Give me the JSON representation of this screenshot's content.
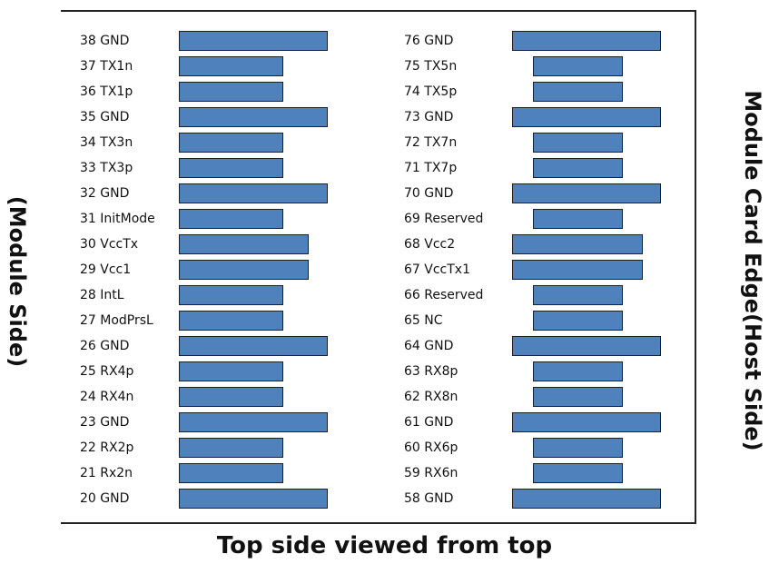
{
  "left_side_label": "(Module Side)",
  "right_side_label": "Module Card Edge(Host Side)",
  "caption": "Top side viewed from top",
  "colors": {
    "pad_fill": "#4f81bd",
    "pad_border": "#1f1f1f",
    "frame": "#222222"
  },
  "left_column": [
    {
      "label": "38 GND",
      "type": "ground"
    },
    {
      "label": "37 TX1n",
      "type": "signal"
    },
    {
      "label": "36 TX1p",
      "type": "signal"
    },
    {
      "label": "35 GND",
      "type": "ground"
    },
    {
      "label": "34 TX3n",
      "type": "signal"
    },
    {
      "label": "33 TX3p",
      "type": "signal"
    },
    {
      "label": "32 GND",
      "type": "ground"
    },
    {
      "label": "31 InitMode",
      "type": "signal"
    },
    {
      "label": "30 VccTx",
      "type": "power"
    },
    {
      "label": "29 Vcc1",
      "type": "power"
    },
    {
      "label": "28 IntL",
      "type": "signal"
    },
    {
      "label": "27 ModPrsL",
      "type": "signal"
    },
    {
      "label": "26 GND",
      "type": "ground"
    },
    {
      "label": "25 RX4p",
      "type": "signal"
    },
    {
      "label": "24 RX4n",
      "type": "signal"
    },
    {
      "label": "23 GND",
      "type": "ground"
    },
    {
      "label": "22 RX2p",
      "type": "signal"
    },
    {
      "label": "21 Rx2n",
      "type": "signal"
    },
    {
      "label": "20 GND",
      "type": "ground"
    }
  ],
  "right_column": [
    {
      "label": "76 GND",
      "type": "ground"
    },
    {
      "label": "75 TX5n",
      "type": "signal"
    },
    {
      "label": "74 TX5p",
      "type": "signal"
    },
    {
      "label": "73 GND",
      "type": "ground"
    },
    {
      "label": "72 TX7n",
      "type": "signal"
    },
    {
      "label": "71 TX7p",
      "type": "signal"
    },
    {
      "label": "70 GND",
      "type": "ground"
    },
    {
      "label": "69 Reserved",
      "type": "signal"
    },
    {
      "label": "68 Vcc2",
      "type": "power"
    },
    {
      "label": "67 VccTx1",
      "type": "power"
    },
    {
      "label": "66 Reserved",
      "type": "signal"
    },
    {
      "label": "65 NC",
      "type": "signal"
    },
    {
      "label": "64 GND",
      "type": "ground"
    },
    {
      "label": "63 RX8p",
      "type": "signal"
    },
    {
      "label": "62 RX8n",
      "type": "signal"
    },
    {
      "label": "61 GND",
      "type": "ground"
    },
    {
      "label": "60 RX6p",
      "type": "signal"
    },
    {
      "label": "59 RX6n",
      "type": "signal"
    },
    {
      "label": "58 GND",
      "type": "ground"
    }
  ]
}
